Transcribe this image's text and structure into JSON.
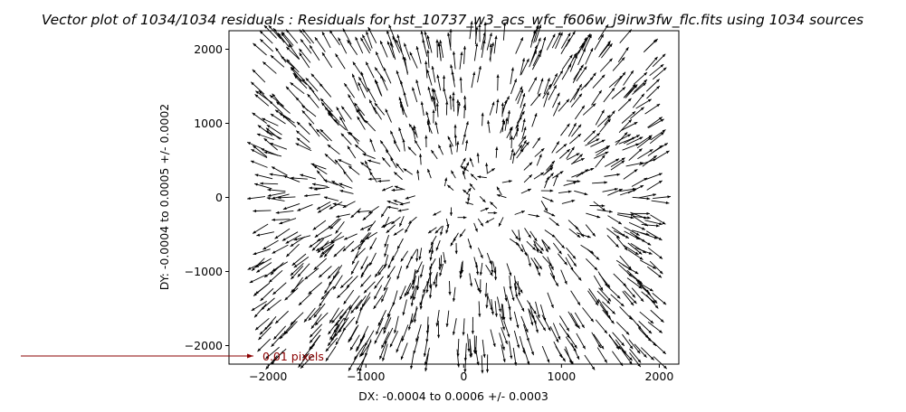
{
  "chart_data": {
    "type": "vector",
    "title": "Vector plot of 1034/1034 residuals : Residuals for hst_10737_w3_acs_wfc_f606w_j9irw3fw_flc.fits using 1034 sources",
    "xlabel": "DX: -0.0004 to 0.0006 +/- 0.0003",
    "ylabel": "DY: -0.0004 to 0.0005 +/- 0.0002",
    "xlim": [
      -2400,
      2200
    ],
    "ylim": [
      -2250,
      2250
    ],
    "xticks": [
      -2000,
      -1000,
      0,
      1000,
      2000
    ],
    "yticks": [
      -2000,
      -1000,
      0,
      1000,
      2000
    ],
    "xtick_labels": [
      "−2000",
      "−1000",
      "0",
      "1000",
      "2000"
    ],
    "ytick_labels": [
      "−2000",
      "−1000",
      "0",
      "1000",
      "2000"
    ],
    "n_sources": 1034,
    "grid": false,
    "vector_color": "#000000",
    "key": {
      "label": "0.01 pixels",
      "x": -2000,
      "y": -2250,
      "length_pixels": 0.01,
      "color": "#8b0000"
    },
    "field": {
      "description_pattern": "radial-quadrupole",
      "x_range": [
        -2050,
        1950
      ],
      "y_range": [
        -2150,
        2150
      ]
    }
  }
}
